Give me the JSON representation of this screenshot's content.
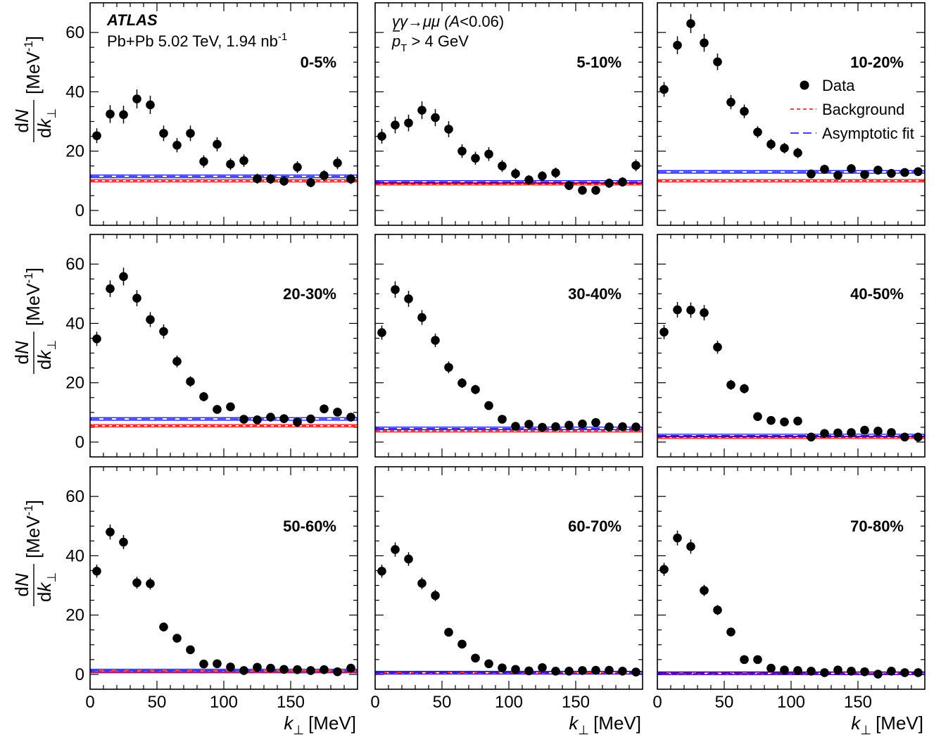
{
  "figure": {
    "experiment": "ATLAS",
    "collision": "Pb+Pb 5.02 TeV, 1.94 nb",
    "collision_sup": "-1",
    "process": "γγ→μμ (",
    "process_A": "A",
    "process_cut": "<0.06)",
    "pt_symbol": "p",
    "pt_sub": "T",
    "pt_cut": " > 4 GeV",
    "ylabel_num": "dN",
    "ylabel_den": "dk",
    "ylabel_den_sub": "⊥",
    "ylabel_unit": "[MeV",
    "ylabel_unit_sup": "-1",
    "ylabel_unit_close": "]",
    "xlabel_sym": "k",
    "xlabel_sub": "⊥",
    "xlabel_unit": "[MeV]",
    "colors": {
      "data": "#000000",
      "background": "#ff0000",
      "fit": "#0000ff"
    }
  },
  "legend": {
    "position": "top-right of panel 10-20%",
    "entries": [
      {
        "label": "Data",
        "style": "marker",
        "color": "#000000"
      },
      {
        "label": "Background",
        "style": "dashed",
        "color": "#ff0000"
      },
      {
        "label": "Asymptotic fit",
        "style": "long-dashed",
        "color": "#0000ff"
      }
    ]
  },
  "chart_data": [
    {
      "type": "scatter",
      "label": "0-5%",
      "xlim": [
        0,
        200
      ],
      "ylim": [
        -5,
        70
      ],
      "x_ticks": [
        0,
        50,
        100,
        150
      ],
      "y_ticks": [
        0,
        20,
        40,
        60
      ],
      "x": [
        5,
        15,
        25,
        35,
        45,
        55,
        65,
        75,
        85,
        95,
        105,
        115,
        125,
        135,
        145,
        155,
        165,
        175,
        185,
        195
      ],
      "y": [
        25.2,
        32.5,
        32.3,
        37.6,
        35.6,
        26,
        22,
        26,
        16.5,
        22.3,
        15.6,
        16.8,
        10.7,
        10.6,
        9.9,
        14.6,
        9.4,
        11.8,
        16,
        10.6
      ],
      "yerr": [
        2.5,
        3.0,
        3.0,
        3.2,
        3.1,
        2.6,
        2.4,
        2.6,
        2.1,
        2.4,
        2.0,
        2.1,
        1.7,
        1.7,
        1.6,
        2.0,
        1.6,
        1.8,
        2.1,
        1.7
      ],
      "background": 10,
      "fit": 11.5
    },
    {
      "type": "scatter",
      "label": "5-10%",
      "xlim": [
        0,
        200
      ],
      "ylim": [
        -5,
        70
      ],
      "x_ticks": [
        0,
        50,
        100,
        150
      ],
      "y_ticks": [
        0,
        20,
        40,
        60
      ],
      "x": [
        5,
        15,
        25,
        35,
        45,
        55,
        65,
        75,
        85,
        95,
        105,
        115,
        125,
        135,
        145,
        155,
        165,
        175,
        185,
        195
      ],
      "y": [
        25,
        28.8,
        29.5,
        33.8,
        31.3,
        27.4,
        20,
        17.6,
        19,
        15,
        12.4,
        10.3,
        11.6,
        12.7,
        8.4,
        6.8,
        6.8,
        9.2,
        9.6,
        15.2
      ],
      "yerr": [
        2.5,
        2.8,
        2.8,
        3.0,
        2.9,
        2.7,
        2.3,
        2.2,
        2.3,
        2.0,
        1.8,
        1.6,
        1.7,
        1.8,
        1.5,
        1.3,
        1.3,
        1.6,
        1.6,
        2.0
      ],
      "background": 9,
      "fit": 9.6
    },
    {
      "type": "scatter",
      "label": "10-20%",
      "xlim": [
        0,
        200
      ],
      "ylim": [
        -5,
        70
      ],
      "x_ticks": [
        0,
        50,
        100,
        150
      ],
      "y_ticks": [
        0,
        20,
        40,
        60
      ],
      "x": [
        5,
        15,
        25,
        35,
        45,
        55,
        65,
        75,
        85,
        95,
        105,
        115,
        125,
        135,
        145,
        155,
        165,
        175,
        185,
        195
      ],
      "y": [
        40.8,
        55.7,
        63,
        56.5,
        50.1,
        36.5,
        33.4,
        26.4,
        22.3,
        21,
        19.4,
        12.3,
        13.9,
        11.9,
        14.1,
        12.1,
        13.6,
        12.5,
        12.8,
        13.1
      ],
      "yerr": [
        2.5,
        3.0,
        3.2,
        3.0,
        2.8,
        2.4,
        2.3,
        2.0,
        1.9,
        1.8,
        1.8,
        1.4,
        1.5,
        1.4,
        1.5,
        1.4,
        1.5,
        1.4,
        1.4,
        1.4
      ],
      "background": 10,
      "fit": 13
    },
    {
      "type": "scatter",
      "label": "20-30%",
      "xlim": [
        0,
        200
      ],
      "ylim": [
        -5,
        70
      ],
      "x_ticks": [
        0,
        50,
        100,
        150
      ],
      "y_ticks": [
        0,
        20,
        40,
        60
      ],
      "x": [
        5,
        15,
        25,
        35,
        45,
        55,
        65,
        75,
        85,
        95,
        105,
        115,
        125,
        135,
        145,
        155,
        165,
        175,
        185,
        195
      ],
      "y": [
        34.8,
        51.7,
        55.8,
        48.5,
        41.3,
        37.3,
        27.2,
        20.4,
        15.3,
        11,
        11.9,
        7.7,
        7.5,
        8.4,
        7.9,
        6.7,
        7.8,
        11.2,
        10.1,
        8.4
      ],
      "yerr": [
        2.4,
        2.8,
        3.0,
        2.7,
        2.5,
        2.4,
        2.0,
        1.8,
        1.6,
        1.3,
        1.4,
        1.1,
        1.1,
        1.1,
        1.1,
        1.0,
        1.1,
        1.3,
        1.3,
        1.1
      ],
      "background": 5.5,
      "fit": 7.8
    },
    {
      "type": "scatter",
      "label": "30-40%",
      "xlim": [
        0,
        200
      ],
      "ylim": [
        -5,
        70
      ],
      "x_ticks": [
        0,
        50,
        100,
        150
      ],
      "y_ticks": [
        0,
        20,
        40,
        60
      ],
      "x": [
        5,
        15,
        25,
        35,
        45,
        55,
        65,
        75,
        85,
        95,
        105,
        115,
        125,
        135,
        145,
        155,
        165,
        175,
        185,
        195
      ],
      "y": [
        36.9,
        51.4,
        48.3,
        42,
        34.3,
        25.2,
        19.9,
        17.7,
        12.3,
        7.7,
        5.3,
        6,
        5,
        5.2,
        5.7,
        6.1,
        6.6,
        5.1,
        5.2,
        5.1
      ],
      "yerr": [
        2.4,
        2.8,
        2.7,
        2.5,
        2.3,
        2.0,
        1.7,
        1.6,
        1.3,
        1.0,
        0.9,
        0.9,
        0.8,
        0.8,
        0.9,
        0.9,
        0.9,
        0.8,
        0.8,
        0.8
      ],
      "background": 3.8,
      "fit": 4.6
    },
    {
      "type": "scatter",
      "label": "40-50%",
      "xlim": [
        0,
        200
      ],
      "ylim": [
        -5,
        70
      ],
      "x_ticks": [
        0,
        50,
        100,
        150
      ],
      "y_ticks": [
        0,
        20,
        40,
        60
      ],
      "x": [
        5,
        15,
        25,
        35,
        45,
        55,
        65,
        75,
        85,
        95,
        105,
        115,
        125,
        135,
        145,
        155,
        165,
        175,
        185,
        195
      ],
      "y": [
        37.1,
        44.6,
        44.5,
        43.6,
        32,
        19.3,
        18,
        8.6,
        7.3,
        6.8,
        7.1,
        1.7,
        2.9,
        3.1,
        3.2,
        4,
        3.7,
        3.2,
        1.7,
        1.7
      ],
      "yerr": [
        2.4,
        2.6,
        2.6,
        2.6,
        2.2,
        1.7,
        1.6,
        1.1,
        1.0,
        1.0,
        1.0,
        0.5,
        0.7,
        0.7,
        0.7,
        0.8,
        0.8,
        0.7,
        0.5,
        0.5
      ],
      "background": 1.6,
      "fit": 2.2
    },
    {
      "type": "scatter",
      "label": "50-60%",
      "xlim": [
        0,
        200
      ],
      "ylim": [
        -5,
        70
      ],
      "x_ticks": [
        0,
        50,
        100,
        150
      ],
      "y_ticks": [
        0,
        20,
        40,
        60
      ],
      "x": [
        5,
        15,
        25,
        35,
        45,
        55,
        65,
        75,
        85,
        95,
        105,
        115,
        125,
        135,
        145,
        155,
        165,
        175,
        185,
        195
      ],
      "y": [
        34.8,
        48,
        44.6,
        30.9,
        30.6,
        16,
        12.2,
        8.3,
        3.5,
        3.6,
        2.5,
        1.3,
        2.4,
        2.1,
        1.7,
        1.6,
        1.3,
        1.6,
        0.9,
        2.1
      ],
      "yerr": [
        2.2,
        2.5,
        2.4,
        2.0,
        2.0,
        1.4,
        1.2,
        1.0,
        0.7,
        0.7,
        0.6,
        0.4,
        0.6,
        0.5,
        0.5,
        0.4,
        0.4,
        0.4,
        0.3,
        0.5
      ],
      "background": 0.9,
      "fit": 1.3
    },
    {
      "type": "scatter",
      "label": "60-70%",
      "xlim": [
        0,
        200
      ],
      "ylim": [
        -5,
        70
      ],
      "x_ticks": [
        0,
        50,
        100,
        150
      ],
      "y_ticks": [
        0,
        20,
        40,
        60
      ],
      "x": [
        5,
        15,
        25,
        35,
        45,
        55,
        65,
        75,
        85,
        95,
        105,
        115,
        125,
        135,
        145,
        155,
        165,
        175,
        185,
        195
      ],
      "y": [
        34.8,
        42.1,
        38.9,
        30.7,
        26.6,
        14.2,
        10.2,
        5.5,
        3.6,
        2.2,
        1.7,
        1.2,
        2.3,
        1.1,
        1.1,
        1.3,
        1.4,
        1.4,
        1.1,
        0.8
      ],
      "yerr": [
        2.2,
        2.4,
        2.3,
        2.0,
        1.9,
        1.3,
        1.1,
        0.8,
        0.6,
        0.5,
        0.4,
        0.4,
        0.5,
        0.4,
        0.4,
        0.4,
        0.4,
        0.4,
        0.4,
        0.3
      ],
      "background": 0.5,
      "fit": 0.6
    },
    {
      "type": "scatter",
      "label": "70-80%",
      "xlim": [
        0,
        200
      ],
      "ylim": [
        -5,
        70
      ],
      "x_ticks": [
        0,
        50,
        100,
        150
      ],
      "y_ticks": [
        0,
        20,
        40,
        60
      ],
      "x": [
        5,
        15,
        25,
        35,
        45,
        55,
        65,
        75,
        85,
        95,
        105,
        115,
        125,
        135,
        145,
        155,
        165,
        175,
        185,
        195
      ],
      "y": [
        35.4,
        46,
        43.1,
        28.3,
        21.7,
        14.3,
        5,
        5,
        2.1,
        1.5,
        1.3,
        1.1,
        0.6,
        1.5,
        1.1,
        0.9,
        0.1,
        1.1,
        0.6,
        0.6
      ],
      "yerr": [
        2.2,
        2.5,
        2.4,
        1.9,
        1.7,
        1.3,
        0.8,
        0.8,
        0.5,
        0.4,
        0.4,
        0.4,
        0.3,
        0.4,
        0.4,
        0.3,
        0.2,
        0.4,
        0.3,
        0.3
      ],
      "background": 0.3,
      "fit": 0.4
    }
  ]
}
